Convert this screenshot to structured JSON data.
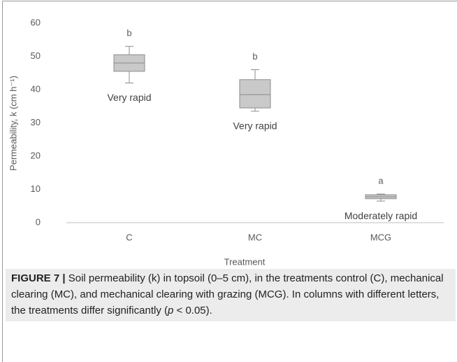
{
  "chart_data": {
    "type": "box",
    "x_label": "Treatment",
    "y_label": "Permeability, k (cm h⁻¹)",
    "categories": [
      "C",
      "MC",
      "MCG"
    ],
    "whisker_low": [
      42,
      33.5,
      6.5
    ],
    "q1": [
      45.5,
      34.5,
      7.2
    ],
    "median": [
      48,
      38.5,
      7.8
    ],
    "q3": [
      50.5,
      43,
      8.4
    ],
    "whisker_high": [
      53,
      46,
      8.6
    ],
    "letters": [
      "b",
      "b",
      "a"
    ],
    "descriptions": [
      "Very rapid",
      "Very rapid",
      "Moderately rapid"
    ],
    "color": "#c9c9c9",
    "ylim": [
      0,
      60
    ],
    "yticks": [
      0,
      10,
      20,
      30,
      40,
      50,
      60
    ],
    "grid": false
  },
  "caption": {
    "label": "FIGURE 7 |",
    "text": "Soil permeability (k) in topsoil (0–5 cm), in the treatments control (C), mechanical clearing (MC), and mechanical clearing with grazing (MCG). In columns with different letters, the treatments differ significantly (",
    "italic": "p",
    "text_end": " < 0.05)."
  }
}
